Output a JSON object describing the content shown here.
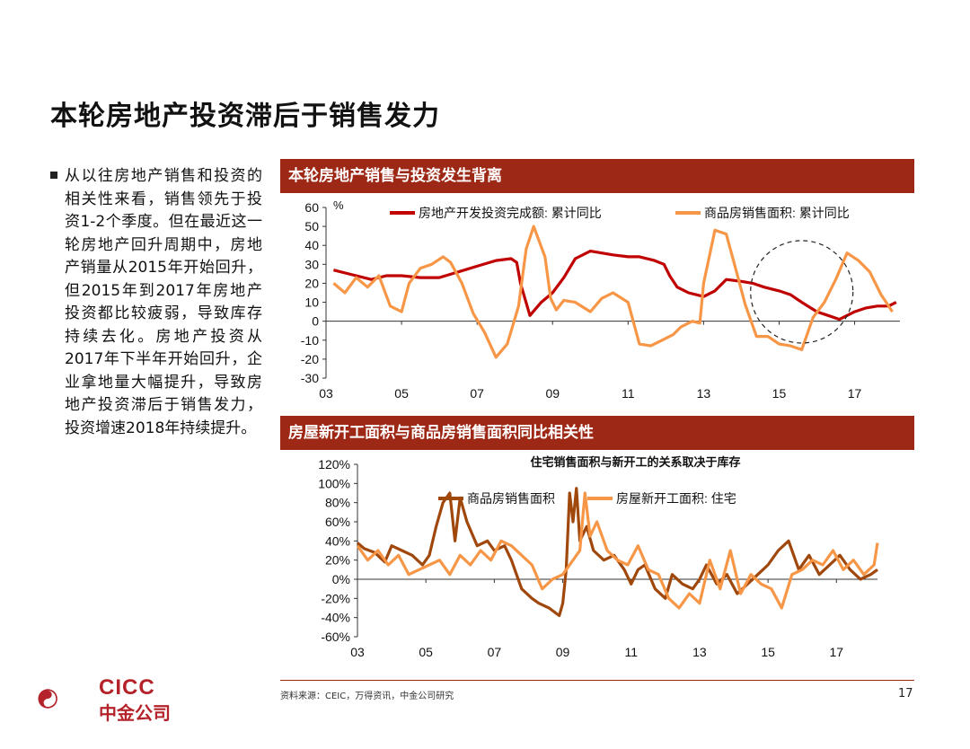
{
  "page_title": "本轮房地产投资滞后于销售发力",
  "bullet_text": "从以往房地产销售和投资的相关性来看，销售领先于投资1-2个季度。但在最近这一轮房地产回升周期中，房地产销量从2015年开始回升，但2015年到2017年房地产投资都比较疲弱，导致库存持续去化。房地产投资从2017年下半年开始回升，企业拿地量大幅提升，导致房地产投资滞后于销售发力，投资增速2018年持续提升。",
  "source": "资料来源：CEIC，万得资讯，中金公司研究",
  "page_number": "17",
  "logo": {
    "en": "CICC",
    "cn": "中金公司",
    "color": "#b4232a"
  },
  "chart_data": [
    {
      "type": "line",
      "header": "本轮房地产销售与投资发生背离",
      "ylabel": "%",
      "ylim": [
        -30,
        60
      ],
      "yticks": [
        "60",
        "50",
        "40",
        "30",
        "20",
        "10",
        "0",
        "-10",
        "-20",
        "-30"
      ],
      "xlim": [
        2003,
        2018.2
      ],
      "xticks": [
        "03",
        "05",
        "07",
        "09",
        "11",
        "13",
        "15",
        "17"
      ],
      "series": [
        {
          "name": "房地产开发投资完成额: 累计同比",
          "color": "#c00000",
          "x": [
            2003.2,
            2003.8,
            2004.2,
            2004.6,
            2005.0,
            2005.5,
            2006.0,
            2006.5,
            2007.0,
            2007.5,
            2007.9,
            2008.05,
            2008.15,
            2008.4,
            2008.7,
            2009.0,
            2009.3,
            2009.6,
            2010.0,
            2010.3,
            2010.6,
            2011.0,
            2011.3,
            2011.7,
            2011.95,
            2012.1,
            2012.3,
            2012.6,
            2013.0,
            2013.3,
            2013.6,
            2014.0,
            2014.3,
            2014.6,
            2015.0,
            2015.3,
            2015.6,
            2016.0,
            2016.3,
            2016.6,
            2017.0,
            2017.3,
            2017.6,
            2017.9,
            2018.1
          ],
          "y": [
            27,
            24,
            22,
            24,
            24,
            23,
            23,
            26,
            29,
            32,
            33,
            31,
            20,
            3,
            10,
            15,
            23,
            33,
            37,
            36,
            35,
            34,
            34,
            32,
            30,
            24,
            18,
            15,
            13,
            16,
            22,
            21,
            20,
            18,
            16,
            14,
            10,
            5,
            3,
            1,
            5,
            7,
            8,
            8,
            10
          ]
        },
        {
          "name": "商品房销售面积: 累计同比",
          "color": "#f79646",
          "x": [
            2003.2,
            2003.5,
            2003.8,
            2004.1,
            2004.4,
            2004.7,
            2005.0,
            2005.2,
            2005.5,
            2005.8,
            2006.1,
            2006.3,
            2006.6,
            2006.9,
            2007.2,
            2007.5,
            2007.8,
            2007.95,
            2008.1,
            2008.3,
            2008.5,
            2008.8,
            2008.95,
            2009.1,
            2009.3,
            2009.6,
            2010.0,
            2010.3,
            2010.6,
            2011.0,
            2011.3,
            2011.6,
            2011.9,
            2012.2,
            2012.4,
            2012.7,
            2012.9,
            2013.0,
            2013.3,
            2013.6,
            2013.9,
            2014.1,
            2014.4,
            2014.7,
            2015.0,
            2015.3,
            2015.6,
            2015.9,
            2016.2,
            2016.5,
            2016.8,
            2017.1,
            2017.4,
            2017.7,
            2018.0
          ],
          "y": [
            20,
            15,
            23,
            18,
            24,
            8,
            5,
            20,
            28,
            30,
            34,
            31,
            20,
            4,
            -6,
            -19,
            -12,
            -2,
            8,
            38,
            50,
            34,
            12,
            6,
            11,
            10,
            5,
            12,
            15,
            10,
            -12,
            -13,
            -10,
            -7,
            -3,
            0,
            -1,
            20,
            48,
            46,
            24,
            9,
            -8,
            -8,
            -12,
            -13,
            -15,
            2,
            10,
            22,
            36,
            32,
            26,
            14,
            5
          ]
        }
      ],
      "legend_position": "top",
      "annotation": "dashed circle highlighting 2015-2017 divergence"
    },
    {
      "type": "line",
      "header": "房屋新开工面积与商品房销售面积同比相关性",
      "title": "住宅销售面积与新开工的关系取决于库存",
      "ylim": [
        -60,
        120
      ],
      "yticks": [
        "120%",
        "100%",
        "80%",
        "60%",
        "40%",
        "20%",
        "0%",
        "-20%",
        "-40%",
        "-60%"
      ],
      "xlim": [
        2003,
        2018.2
      ],
      "xticks": [
        "03",
        "05",
        "07",
        "09",
        "11",
        "13",
        "15",
        "17"
      ],
      "series": [
        {
          "name": "商品房销售面积",
          "color": "#a0470c",
          "x": [
            2003.0,
            2003.2,
            2003.5,
            2003.8,
            2004.0,
            2004.3,
            2004.6,
            2004.9,
            2005.1,
            2005.3,
            2005.5,
            2005.7,
            2005.85,
            2006.0,
            2006.2,
            2006.5,
            2006.8,
            2007.0,
            2007.3,
            2007.5,
            2007.8,
            2008.1,
            2008.3,
            2008.6,
            2008.9,
            2009.0,
            2009.1,
            2009.2,
            2009.3,
            2009.4,
            2009.5,
            2009.7,
            2009.9,
            2010.2,
            2010.5,
            2010.8,
            2011.0,
            2011.2,
            2011.4,
            2011.7,
            2012.0,
            2012.2,
            2012.5,
            2012.8,
            2013.0,
            2013.2,
            2013.5,
            2013.8,
            2014.1,
            2014.4,
            2014.7,
            2015.0,
            2015.3,
            2015.6,
            2015.9,
            2016.2,
            2016.5,
            2016.8,
            2017.1,
            2017.4,
            2017.7,
            2018.0,
            2018.2
          ],
          "y": [
            38,
            32,
            28,
            18,
            35,
            30,
            25,
            15,
            25,
            55,
            80,
            90,
            40,
            85,
            60,
            35,
            40,
            30,
            35,
            20,
            -10,
            -20,
            -25,
            -30,
            -38,
            -25,
            10,
            90,
            60,
            95,
            40,
            55,
            30,
            20,
            25,
            10,
            -5,
            10,
            15,
            -10,
            -20,
            5,
            -5,
            -10,
            0,
            15,
            -5,
            5,
            -15,
            -5,
            5,
            15,
            30,
            40,
            10,
            25,
            5,
            15,
            25,
            10,
            0,
            5,
            10
          ]
        },
        {
          "name": "房屋新开工面积: 住宅",
          "color": "#f79646",
          "x": [
            2003.0,
            2003.3,
            2003.6,
            2003.9,
            2004.2,
            2004.5,
            2004.8,
            2005.1,
            2005.4,
            2005.7,
            2006.0,
            2006.3,
            2006.6,
            2006.9,
            2007.2,
            2007.5,
            2007.8,
            2008.1,
            2008.4,
            2008.7,
            2009.0,
            2009.3,
            2009.5,
            2009.65,
            2009.8,
            2010.0,
            2010.3,
            2010.6,
            2010.9,
            2011.2,
            2011.5,
            2011.8,
            2012.1,
            2012.4,
            2012.7,
            2013.0,
            2013.3,
            2013.6,
            2013.9,
            2014.2,
            2014.5,
            2014.8,
            2015.1,
            2015.4,
            2015.7,
            2016.0,
            2016.3,
            2016.6,
            2016.9,
            2017.2,
            2017.5,
            2017.8,
            2018.1,
            2018.2
          ],
          "y": [
            35,
            20,
            30,
            15,
            25,
            5,
            10,
            15,
            20,
            5,
            25,
            15,
            30,
            20,
            40,
            35,
            25,
            15,
            -10,
            0,
            5,
            20,
            30,
            90,
            45,
            60,
            30,
            20,
            15,
            35,
            10,
            5,
            -20,
            -30,
            -15,
            -25,
            20,
            -10,
            30,
            -15,
            5,
            -5,
            -10,
            -30,
            5,
            10,
            20,
            15,
            30,
            10,
            20,
            5,
            15,
            38
          ]
        }
      ],
      "legend_position": "top"
    }
  ]
}
